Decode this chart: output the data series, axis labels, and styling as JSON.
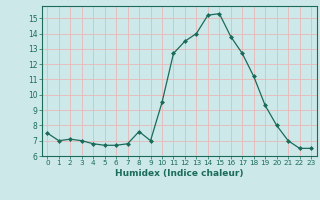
{
  "x": [
    0,
    1,
    2,
    3,
    4,
    5,
    6,
    7,
    8,
    9,
    10,
    11,
    12,
    13,
    14,
    15,
    16,
    17,
    18,
    19,
    20,
    21,
    22,
    23
  ],
  "y": [
    7.5,
    7.0,
    7.1,
    7.0,
    6.8,
    6.7,
    6.7,
    6.8,
    7.6,
    7.0,
    9.5,
    12.7,
    13.5,
    14.0,
    15.2,
    15.3,
    13.8,
    12.7,
    11.2,
    9.3,
    8.0,
    7.0,
    6.5,
    6.5
  ],
  "xlim": [
    -0.5,
    23.5
  ],
  "ylim": [
    6,
    15.8
  ],
  "yticks": [
    6,
    7,
    8,
    9,
    10,
    11,
    12,
    13,
    14,
    15
  ],
  "xticks": [
    0,
    1,
    2,
    3,
    4,
    5,
    6,
    7,
    8,
    9,
    10,
    11,
    12,
    13,
    14,
    15,
    16,
    17,
    18,
    19,
    20,
    21,
    22,
    23
  ],
  "xlabel": "Humidex (Indice chaleur)",
  "line_color": "#1a6b5a",
  "marker": "D",
  "marker_size": 2.0,
  "bg_color": "#cde8e8",
  "grid_color": "#e8b8b8",
  "title": ""
}
